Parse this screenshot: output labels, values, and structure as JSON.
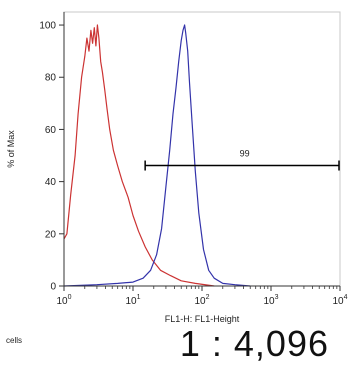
{
  "chart_data": {
    "type": "line",
    "ylabel": "% of Max",
    "xlabel": "FL1-H: FL1-Height",
    "x_scale": "log",
    "xlim": [
      1,
      10000
    ],
    "ylim": [
      0,
      105
    ],
    "y_ticks": [
      "0",
      "20",
      "40",
      "60",
      "80",
      "100"
    ],
    "x_ticks": [
      {
        "base": "10",
        "exp": "0"
      },
      {
        "base": "10",
        "exp": "1"
      },
      {
        "base": "10",
        "exp": "2"
      },
      {
        "base": "10",
        "exp": "3"
      },
      {
        "base": "10",
        "exp": "4"
      }
    ],
    "grid": false,
    "series": [
      {
        "color": "#cc3333",
        "x": [
          1.0,
          1.1,
          1.25,
          1.45,
          1.6,
          1.8,
          2.0,
          2.15,
          2.3,
          2.45,
          2.6,
          2.75,
          2.9,
          3.05,
          3.2,
          3.4,
          3.6,
          3.9,
          4.2,
          4.6,
          5.2,
          6.0,
          7.0,
          8.5,
          10,
          12,
          15,
          19,
          25,
          35,
          50,
          80,
          150
        ],
        "y": [
          18,
          20,
          35,
          50,
          66,
          80,
          88,
          95,
          90,
          98,
          93,
          99,
          92,
          100,
          95,
          86,
          82,
          75,
          68,
          60,
          52,
          46,
          40,
          34,
          27,
          21,
          15,
          10,
          6,
          4,
          2,
          1,
          0
        ]
      },
      {
        "color": "#3333aa",
        "x": [
          1,
          3,
          6,
          10,
          14,
          18,
          22,
          26,
          30,
          34,
          38,
          42,
          46,
          50,
          53,
          56,
          58,
          62,
          66,
          72,
          80,
          90,
          105,
          125,
          150,
          200,
          300,
          500
        ],
        "y": [
          0,
          0.5,
          1,
          1.5,
          3,
          6,
          12,
          22,
          38,
          52,
          66,
          76,
          86,
          94,
          98,
          100,
          97,
          90,
          78,
          62,
          44,
          28,
          14,
          6,
          3,
          1,
          0.5,
          0
        ]
      }
    ],
    "gate": {
      "label": "99",
      "x_start": 15,
      "x_end": 10000,
      "y": 50
    }
  },
  "footer": {
    "cells_label": "cells",
    "dilution_text": "1 : 4,096"
  }
}
